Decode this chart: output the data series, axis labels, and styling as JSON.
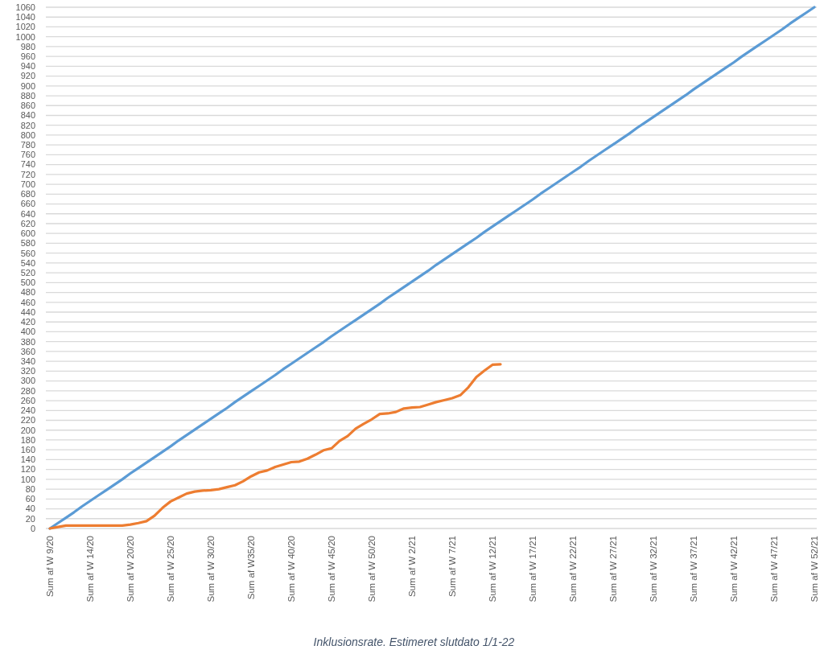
{
  "chart_data": {
    "type": "line",
    "categories": [
      "Sum af W 9/20",
      null,
      null,
      null,
      null,
      "Sum af W 14/20",
      null,
      null,
      null,
      null,
      "Sum af W 20/20",
      null,
      null,
      null,
      null,
      "Sum af W 25/20",
      null,
      null,
      null,
      null,
      "Sum af W 30/20",
      null,
      null,
      null,
      null,
      "Sum af W35/20",
      null,
      null,
      null,
      null,
      "Sum af W 40/20",
      null,
      null,
      null,
      null,
      "Sum af W 45/20",
      null,
      null,
      null,
      null,
      "Sum af W 50/20",
      null,
      null,
      null,
      null,
      "Sum af W 2/21",
      null,
      null,
      null,
      null,
      "Sum af W 7/21",
      null,
      null,
      null,
      null,
      "Sum af W 12/21",
      null,
      null,
      null,
      null,
      "Sum af W 17/21",
      null,
      null,
      null,
      null,
      "Sum af W 22/21",
      null,
      null,
      null,
      null,
      "Sum af W 27/21",
      null,
      null,
      null,
      null,
      "Sum af W 32/21",
      null,
      null,
      null,
      null,
      "Sum af W 37/21",
      null,
      null,
      null,
      null,
      "Sum af W 42/21",
      null,
      null,
      null,
      null,
      "Sum af W 47/21",
      null,
      null,
      null,
      null,
      "Sum af W 52/21"
    ],
    "series": [
      {
        "color": "#5b9bd5",
        "values": [
          0,
          11,
          22,
          33,
          45,
          56,
          67,
          78,
          89,
          100,
          112,
          123,
          134,
          145,
          156,
          167,
          179,
          190,
          201,
          212,
          223,
          234,
          245,
          257,
          268,
          279,
          290,
          301,
          312,
          324,
          335,
          346,
          357,
          368,
          379,
          391,
          402,
          413,
          424,
          435,
          446,
          457,
          469,
          480,
          491,
          502,
          513,
          524,
          536,
          547,
          558,
          569,
          580,
          591,
          603,
          614,
          625,
          636,
          647,
          658,
          669,
          681,
          692,
          703,
          714,
          725,
          736,
          748,
          759,
          770,
          781,
          792,
          803,
          815,
          826,
          837,
          848,
          859,
          870,
          881,
          893,
          904,
          915,
          926,
          937,
          948,
          960,
          971,
          982,
          993,
          1004,
          1015,
          1027,
          1038,
          1049,
          1060
        ]
      },
      {
        "color": "#ed7d31",
        "values": [
          0,
          3,
          6,
          6,
          6,
          6,
          6,
          6,
          6,
          6,
          8,
          11,
          15,
          26,
          42,
          55,
          63,
          71,
          75,
          77,
          78,
          80,
          84,
          88,
          96,
          106,
          114,
          118,
          125,
          130,
          135,
          136,
          142,
          150,
          159,
          163,
          178,
          188,
          203,
          213,
          222,
          233,
          234,
          237,
          244,
          246,
          247,
          252,
          257,
          261,
          265,
          271,
          287,
          308,
          321,
          333,
          334,
          null,
          null,
          null,
          null,
          null,
          null,
          null,
          null,
          null,
          null,
          null,
          null,
          null,
          null,
          null,
          null,
          null,
          null,
          null,
          null,
          null,
          null,
          null,
          null,
          null,
          null,
          null,
          null,
          null,
          null,
          null,
          null,
          null,
          null,
          null,
          null,
          null,
          null,
          null
        ]
      }
    ],
    "ylim": [
      0,
      1060
    ],
    "yticks": [
      0,
      20,
      40,
      60,
      80,
      100,
      120,
      140,
      160,
      180,
      200,
      220,
      240,
      260,
      280,
      300,
      320,
      340,
      360,
      380,
      400,
      420,
      440,
      460,
      480,
      500,
      520,
      540,
      560,
      580,
      600,
      620,
      640,
      660,
      680,
      700,
      720,
      740,
      760,
      780,
      800,
      820,
      840,
      860,
      880,
      900,
      920,
      940,
      960,
      980,
      1000,
      1020,
      1040,
      1060
    ],
    "grid": "y",
    "annotations": [
      "Inklusionsrate. Estimeret slutdato 1/1-22"
    ]
  }
}
